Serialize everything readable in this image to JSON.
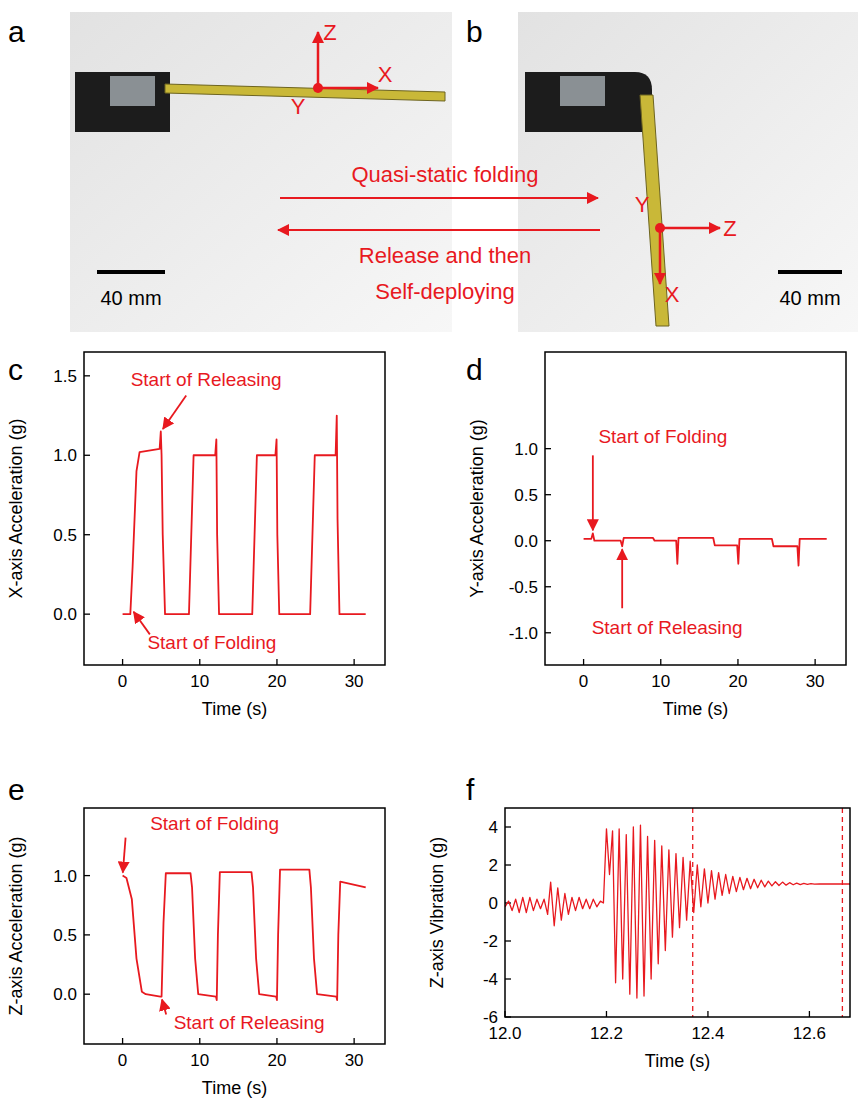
{
  "photos": [
    {
      "label": "a",
      "scale_bar": "40 mm",
      "axis_labels": [
        "Z",
        "Y",
        "X"
      ]
    },
    {
      "label": "b",
      "scale_bar": "40 mm",
      "axis_labels": [
        "Y",
        "Z",
        "X"
      ]
    }
  ],
  "transition": {
    "forward": "Quasi-static folding",
    "backward": [
      "Release and then",
      "Self-deploying"
    ]
  },
  "chart_data": [
    {
      "type": "line",
      "label": "c",
      "x_label": "Time (s)",
      "y_label": "X-axis Acceleration (g)",
      "color": "#e8191f",
      "xlim": [
        -5,
        34
      ],
      "xticks": [
        0,
        10,
        20,
        30
      ],
      "ylim": [
        -0.32,
        1.65
      ],
      "yticks": [
        {
          "value": 0,
          "label": "0.0"
        },
        {
          "value": 0.5,
          "label": "0.5"
        },
        {
          "value": 1,
          "label": "1.0"
        },
        {
          "value": 1.5,
          "label": "1.5"
        }
      ],
      "x": [
        0,
        1.0,
        1.3,
        1.8,
        2.2,
        4.8,
        4.95,
        5.05,
        5.2,
        5.5,
        8.6,
        8.9,
        9.2,
        12.0,
        12.15,
        12.25,
        12.5,
        16.8,
        17.1,
        17.4,
        19.8,
        19.95,
        20.05,
        20.3,
        24.3,
        24.6,
        24.9,
        27.6,
        27.75,
        27.85,
        28.1,
        31.5
      ],
      "values": [
        0,
        0,
        0.3,
        0.9,
        1.02,
        1.04,
        1.15,
        1.0,
        0.5,
        0.0,
        0.0,
        0.5,
        1.0,
        1.0,
        1.1,
        0.5,
        0.0,
        0.0,
        0.5,
        1.0,
        1.0,
        1.1,
        0.5,
        0.0,
        0.0,
        0.5,
        1.0,
        1.0,
        1.25,
        0.6,
        0.0,
        0.0
      ],
      "annotations": [
        {
          "text": "Start of Releasing",
          "x": 5.0,
          "y": 1.15
        },
        {
          "text": "Start of Folding",
          "x": 1.2,
          "y": 0.03
        }
      ]
    },
    {
      "type": "line",
      "label": "d",
      "x_label": "Time (s)",
      "y_label": "Y-axis Acceleration (g)",
      "color": "#e8191f",
      "xlim": [
        -5,
        34
      ],
      "xticks": [
        0,
        10,
        20,
        30
      ],
      "ylim": [
        -1.35,
        2.05
      ],
      "yticks": [
        {
          "value": -1,
          "label": "-1.0"
        },
        {
          "value": -0.5,
          "label": "-0.5"
        },
        {
          "value": 0,
          "label": "0.0"
        },
        {
          "value": 0.5,
          "label": "0.5"
        },
        {
          "value": 1,
          "label": "1.0"
        }
      ],
      "x": [
        0,
        1.0,
        1.2,
        1.4,
        1.6,
        4.8,
        5.0,
        5.2,
        5.4,
        9.0,
        9.2,
        12.0,
        12.15,
        12.3,
        12.5,
        16.8,
        17.0,
        19.9,
        20.05,
        20.2,
        20.4,
        24.4,
        24.6,
        27.7,
        27.85,
        28.0,
        28.2,
        31.5
      ],
      "values": [
        0.02,
        0.02,
        0.08,
        0.0,
        0.0,
        0.0,
        -0.06,
        0.03,
        0.03,
        0.03,
        0.0,
        0.0,
        -0.25,
        0.03,
        0.03,
        0.03,
        -0.05,
        -0.05,
        -0.25,
        0.02,
        0.02,
        0.02,
        -0.06,
        -0.06,
        -0.27,
        0.02,
        0.02,
        0.02
      ],
      "annotations": [
        {
          "text": "Start of Folding",
          "x": 1.2,
          "y": 0.08
        },
        {
          "text": "Start of Releasing",
          "x": 5.0,
          "y": -0.06
        }
      ]
    },
    {
      "type": "line",
      "label": "e",
      "x_label": "Time (s)",
      "y_label": "Z-axis Acceleration (g)",
      "color": "#e8191f",
      "xlim": [
        -5,
        34
      ],
      "xticks": [
        0,
        10,
        20,
        30
      ],
      "ylim": [
        -0.42,
        1.57
      ],
      "yticks": [
        {
          "value": 0,
          "label": "0.0"
        },
        {
          "value": 0.5,
          "label": "0.5"
        },
        {
          "value": 1,
          "label": "1.0"
        }
      ],
      "x": [
        0,
        0.5,
        1.2,
        1.8,
        2.5,
        3.0,
        4.9,
        5.05,
        5.3,
        5.6,
        8.8,
        9.0,
        9.4,
        9.8,
        12.1,
        12.2,
        12.35,
        12.6,
        16.7,
        16.9,
        17.3,
        17.7,
        19.9,
        20.0,
        20.15,
        20.4,
        24.2,
        24.4,
        24.8,
        25.2,
        27.7,
        27.8,
        27.95,
        28.2,
        31.5
      ],
      "values": [
        1.0,
        0.98,
        0.8,
        0.3,
        0.02,
        0.0,
        -0.02,
        -0.02,
        0.6,
        1.02,
        1.02,
        0.9,
        0.3,
        0.0,
        -0.02,
        -0.05,
        0.5,
        1.03,
        1.03,
        0.9,
        0.3,
        0.0,
        -0.02,
        -0.05,
        0.5,
        1.05,
        1.05,
        0.9,
        0.3,
        0.0,
        -0.02,
        -0.05,
        0.5,
        0.95,
        0.9
      ],
      "annotations": [
        {
          "text": "Start of Folding",
          "x": 0,
          "y": 1.0
        },
        {
          "text": "Start of Releasing",
          "x": 5.0,
          "y": -0.02
        }
      ]
    },
    {
      "type": "line",
      "label": "f",
      "x_label": "Time (s)",
      "y_label": "Z-axis Vibration (g)",
      "color": "#e8191f",
      "xlim": [
        12.0,
        12.68
      ],
      "xticks": [
        {
          "value": 12,
          "label": "12.0"
        },
        12.2,
        12.4,
        12.6
      ],
      "ylim": [
        -6,
        5
      ],
      "yticks": [
        -6,
        -4,
        -2,
        0,
        2,
        4
      ],
      "vlines": [
        12.37,
        12.665
      ],
      "x": [
        12.0,
        12.007,
        12.014,
        12.021,
        12.028,
        12.035,
        12.042,
        12.049,
        12.056,
        12.063,
        12.07,
        12.077,
        12.084,
        12.09,
        12.097,
        12.104,
        12.111,
        12.118,
        12.125,
        12.132,
        12.139,
        12.146,
        12.153,
        12.16,
        12.167,
        12.174,
        12.181,
        12.188,
        12.194,
        12.2,
        12.206,
        12.212,
        12.218,
        12.225,
        12.232,
        12.239,
        12.246,
        12.253,
        12.26,
        12.267,
        12.274,
        12.281,
        12.288,
        12.295,
        12.302,
        12.309,
        12.316,
        12.323,
        12.33,
        12.337,
        12.344,
        12.351,
        12.358,
        12.365,
        12.372,
        12.379,
        12.386,
        12.393,
        12.4,
        12.407,
        12.414,
        12.421,
        12.428,
        12.435,
        12.442,
        12.449,
        12.456,
        12.463,
        12.47,
        12.477,
        12.484,
        12.491,
        12.498,
        12.505,
        12.512,
        12.519,
        12.526,
        12.533,
        12.54,
        12.547,
        12.554,
        12.561,
        12.568,
        12.575,
        12.582,
        12.589,
        12.596,
        12.603,
        12.61,
        12.62,
        12.635,
        12.65,
        12.665,
        12.68
      ],
      "values": [
        -0.2,
        0.1,
        -0.4,
        0.2,
        -0.5,
        0.3,
        -0.5,
        0.3,
        -0.4,
        0.2,
        -0.3,
        0.2,
        -0.6,
        1.1,
        -1.2,
        0.8,
        -0.9,
        0.5,
        -0.6,
        0.3,
        -0.4,
        0.3,
        -0.3,
        0.2,
        -0.3,
        0.2,
        -0.2,
        0.1,
        0.0,
        3.9,
        1.5,
        3.8,
        -4.2,
        3.9,
        -4.0,
        3.6,
        -4.8,
        4.0,
        -5.0,
        4.1,
        -4.9,
        3.5,
        -4.0,
        3.3,
        -3.2,
        3.0,
        -2.5,
        2.8,
        -1.8,
        2.6,
        -1.3,
        2.4,
        -0.9,
        2.2,
        -0.5,
        2.0,
        -0.2,
        1.8,
        0.0,
        1.7,
        0.2,
        1.6,
        0.4,
        1.5,
        0.5,
        1.4,
        0.6,
        1.35,
        0.7,
        1.3,
        0.75,
        1.25,
        0.8,
        1.2,
        0.85,
        1.15,
        0.9,
        1.12,
        0.92,
        1.1,
        0.94,
        1.07,
        0.96,
        1.05,
        0.97,
        1.03,
        0.98,
        1.02,
        0.99,
        1.01,
        1.0,
        1.0,
        1.0,
        1.0
      ]
    }
  ]
}
